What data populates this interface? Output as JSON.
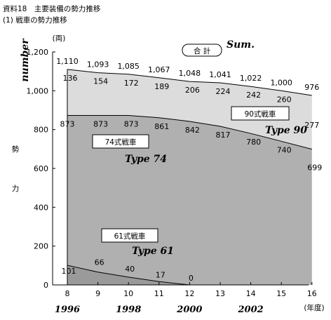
{
  "header": {
    "title": "資料18　主要装備の勢力推移",
    "subtitle": "(1) 戦車の勢力推移"
  },
  "chart_data": {
    "type": "area",
    "stacked": true,
    "y_unit": "(両)",
    "ylabel": "勢力",
    "ylabel_chars": [
      "勢",
      "力"
    ],
    "ylabel_en": "number",
    "x_unit": "(年度)",
    "x": [
      "8",
      "9",
      "10",
      "11",
      "12",
      "13",
      "14",
      "15",
      "16"
    ],
    "x_years": [
      {
        "x": "8",
        "label": "1996"
      },
      {
        "x": "10",
        "label": "1998"
      },
      {
        "x": "12",
        "label": "2000"
      },
      {
        "x": "14",
        "label": "2002"
      }
    ],
    "ylim": [
      0,
      1200
    ],
    "yticks": [
      0,
      200,
      400,
      600,
      800,
      1000,
      1200
    ],
    "ytick_labels": [
      "0",
      "200",
      "400",
      "600",
      "800",
      "1,000",
      "1,200"
    ],
    "series": [
      {
        "name": "61式戦車",
        "name_en": "Type 61",
        "color": "#9a9a9a",
        "values": [
          101,
          66,
          40,
          17,
          0,
          null,
          null,
          null,
          null
        ],
        "labels": [
          "101",
          "66",
          "40",
          "17",
          "0",
          "",
          "",
          "",
          ""
        ]
      },
      {
        "name": "74式戦車",
        "name_en": "Type 74",
        "color": "#b0b0b0",
        "values": [
          873,
          873,
          873,
          861,
          842,
          817,
          780,
          740,
          699
        ],
        "labels": [
          "873",
          "873",
          "873",
          "861",
          "842",
          "817",
          "780",
          "740",
          "699"
        ]
      },
      {
        "name": "90式戦車",
        "name_en": "Type 90",
        "color": "#dcdcdc",
        "values": [
          136,
          154,
          172,
          189,
          206,
          224,
          242,
          260,
          277
        ],
        "labels": [
          "136",
          "154",
          "172",
          "189",
          "206",
          "224",
          "242",
          "260",
          "277"
        ]
      }
    ],
    "total": {
      "name": "合 計",
      "name_en": "Sum.",
      "values": [
        1110,
        1093,
        1085,
        1067,
        1048,
        1041,
        1022,
        1000,
        976
      ],
      "labels": [
        "1,110",
        "1,093",
        "1,085",
        "1,067",
        "1,048",
        "1,041",
        "1,022",
        "1,000",
        "976"
      ]
    },
    "grid": false
  }
}
